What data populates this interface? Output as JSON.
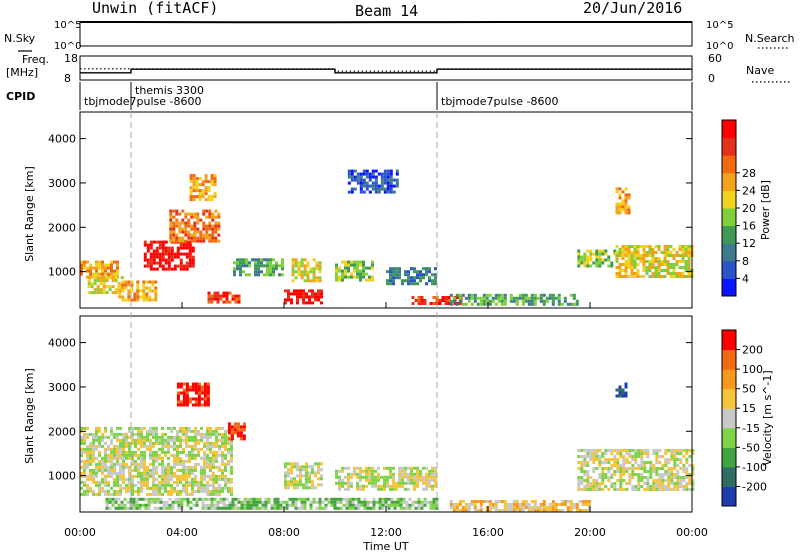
{
  "header": {
    "station": "Unwin (fitACF)",
    "beam": "Beam 14",
    "date": "20/Jun/2016"
  },
  "side_labels": {
    "nsky": "N.Sky",
    "nsearch": "N.Search",
    "freq": "Freq.",
    "freq_unit": "[MHz]",
    "nave": "Nave",
    "cpid": "CPID"
  },
  "nsky_axis": {
    "top": "10^5",
    "bottom": "10^0"
  },
  "freq_axis": {
    "ticks": [
      "18",
      "8"
    ]
  },
  "nave_axis": {
    "ticks": [
      "60",
      "0"
    ]
  },
  "cpid_segments": [
    {
      "start_hour": 0,
      "label": "tbjmode7pulse -8600"
    },
    {
      "start_hour": 2,
      "label": "themis 3300"
    },
    {
      "start_hour": 14,
      "label": "tbjmode7pulse -8600"
    }
  ],
  "time_axis": {
    "label": "Time UT",
    "ticks": [
      "00:00",
      "04:00",
      "08:00",
      "12:00",
      "16:00",
      "20:00",
      "00:00"
    ],
    "hours": [
      0,
      4,
      8,
      12,
      16,
      20,
      24
    ]
  },
  "chart_data": [
    {
      "type": "line",
      "title": "N.Sky / N.Search",
      "x_hours": [
        0,
        2,
        6,
        10,
        14,
        18,
        22,
        24
      ],
      "series": [
        {
          "name": "N.Sky",
          "values": [
            100000,
            100000,
            90000,
            90000,
            95000,
            100000,
            100000,
            100000
          ]
        }
      ],
      "ylim": [
        1,
        100000
      ],
      "log_y": true
    },
    {
      "type": "line",
      "title": "Freq / Nave",
      "x_hours": [
        0,
        2,
        2,
        10,
        10,
        14,
        14,
        24
      ],
      "series": [
        {
          "name": "Freq.",
          "values": [
            11,
            11,
            12.5,
            12.5,
            11,
            11,
            12.5,
            12.5
          ]
        },
        {
          "name": "Nave",
          "values": [
            28,
            28,
            28,
            28,
            22,
            22,
            28,
            28
          ]
        }
      ],
      "ylim": [
        8,
        18
      ],
      "y2lim": [
        0,
        60
      ]
    },
    {
      "type": "heatmap",
      "panel": "power",
      "ylabel": "Slant Range [km]",
      "xlabel": "",
      "ylim": [
        180,
        4600
      ],
      "xlim_hours": [
        0,
        24
      ],
      "yticks": [
        1000,
        2000,
        3000,
        4000
      ],
      "colorbar": {
        "label": "Power [dB]",
        "ticks": [
          "4",
          "8",
          "12",
          "16",
          "20",
          "24",
          "28"
        ],
        "colors": [
          "#0a14ff",
          "#2a55c8",
          "#3c7a8c",
          "#3e9a55",
          "#7fcf3a",
          "#f2d21f",
          "#f3a21c",
          "#f06a14",
          "#e4311a",
          "#ff0000"
        ]
      },
      "regions": [
        {
          "t0": 0.0,
          "t1": 1.5,
          "r0": 850,
          "r1": 1250,
          "level": 6
        },
        {
          "t0": 0.3,
          "t1": 1.6,
          "r0": 500,
          "r1": 900,
          "level": 5
        },
        {
          "t0": 1.5,
          "t1": 3.0,
          "r0": 350,
          "r1": 800,
          "level": 6
        },
        {
          "t0": 2.5,
          "t1": 4.5,
          "r0": 1050,
          "r1": 1700,
          "level": 9
        },
        {
          "t0": 3.5,
          "t1": 5.5,
          "r0": 1700,
          "r1": 2400,
          "level": 7
        },
        {
          "t0": 4.3,
          "t1": 5.3,
          "r0": 2600,
          "r1": 3200,
          "level": 6
        },
        {
          "t0": 5.0,
          "t1": 6.2,
          "r0": 300,
          "r1": 550,
          "level": 8
        },
        {
          "t0": 6.0,
          "t1": 8.0,
          "r0": 900,
          "r1": 1300,
          "level": 3
        },
        {
          "t0": 8.0,
          "t1": 9.5,
          "r0": 300,
          "r1": 600,
          "level": 9
        },
        {
          "t0": 8.3,
          "t1": 9.4,
          "r0": 800,
          "r1": 1300,
          "level": 5
        },
        {
          "t0": 10.0,
          "t1": 11.5,
          "r0": 800,
          "r1": 1250,
          "level": 4
        },
        {
          "t0": 10.5,
          "t1": 12.5,
          "r0": 2800,
          "r1": 3300,
          "level": 1
        },
        {
          "t0": 12.0,
          "t1": 14.0,
          "r0": 700,
          "r1": 1100,
          "level": 2
        },
        {
          "t0": 13.0,
          "t1": 15.0,
          "r0": 250,
          "r1": 450,
          "level": 8
        },
        {
          "t0": 14.5,
          "t1": 19.5,
          "r0": 230,
          "r1": 500,
          "level": 3
        },
        {
          "t0": 19.5,
          "t1": 21.0,
          "r0": 1100,
          "r1": 1500,
          "level": 4
        },
        {
          "t0": 21.0,
          "t1": 24.0,
          "r0": 900,
          "r1": 1600,
          "level": 5
        },
        {
          "t0": 21.0,
          "t1": 21.5,
          "r0": 2300,
          "r1": 2900,
          "level": 6
        }
      ]
    },
    {
      "type": "heatmap",
      "panel": "velocity",
      "ylabel": "Slant Range [km]",
      "xlabel": "Time UT",
      "ylim": [
        180,
        4600
      ],
      "xlim_hours": [
        0,
        24
      ],
      "yticks": [
        1000,
        2000,
        3000,
        4000
      ],
      "colorbar": {
        "label": "Velocity [m s^-1]",
        "ticks": [
          "200",
          "100",
          "50",
          "15",
          "-15",
          "-50",
          "-100",
          "-200"
        ],
        "colors": [
          "#1d3fae",
          "#2f6e63",
          "#41a43f",
          "#7fd349",
          "#c8c8c8",
          "#f5c43a",
          "#f59a1f",
          "#f06a14",
          "#ff0000"
        ]
      },
      "regions": [
        {
          "t0": 0.0,
          "t1": 6.0,
          "r0": 600,
          "r1": 2100,
          "level": 4
        },
        {
          "t0": 3.8,
          "t1": 5.0,
          "r0": 2600,
          "r1": 3100,
          "level": 8
        },
        {
          "t0": 5.8,
          "t1": 6.4,
          "r0": 1800,
          "r1": 2200,
          "level": 8
        },
        {
          "t0": 8.0,
          "t1": 9.5,
          "r0": 700,
          "r1": 1300,
          "level": 4
        },
        {
          "t0": 10.0,
          "t1": 14.0,
          "r0": 700,
          "r1": 1200,
          "level": 4
        },
        {
          "t0": 1.0,
          "t1": 14.0,
          "r0": 250,
          "r1": 500,
          "level": 3
        },
        {
          "t0": 14.5,
          "t1": 20.0,
          "r0": 230,
          "r1": 450,
          "level": 5
        },
        {
          "t0": 19.5,
          "t1": 24.0,
          "r0": 700,
          "r1": 1600,
          "level": 4
        },
        {
          "t0": 21.0,
          "t1": 21.4,
          "r0": 2800,
          "r1": 3100,
          "level": 0
        }
      ]
    }
  ]
}
